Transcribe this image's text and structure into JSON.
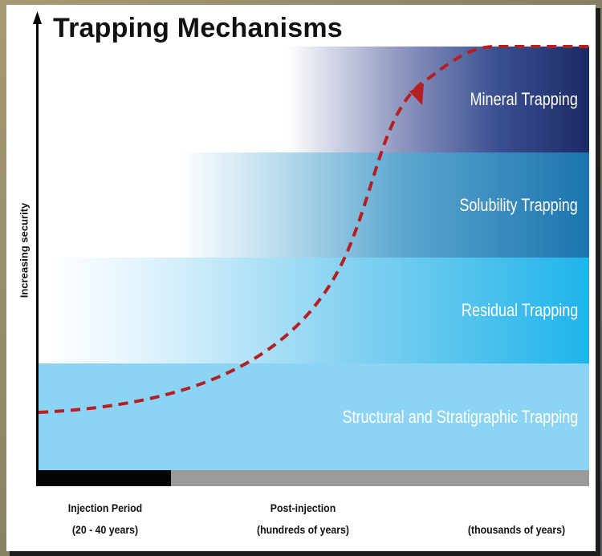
{
  "title": "Trapping Mechanisms",
  "y_axis_label": "Increasing security",
  "bands": [
    {
      "label": "Mineral Trapping"
    },
    {
      "label": "Solubility Trapping"
    },
    {
      "label": "Residual Trapping"
    },
    {
      "label": "Structural and Stratigraphic Trapping"
    }
  ],
  "timeline": {
    "periods": [
      {
        "line1": "Injection Period",
        "line2": "(20 - 40 years)"
      },
      {
        "line1": "Post-injection",
        "line2": "(hundreds of years)"
      },
      {
        "line1": "",
        "line2": "(thousands of years)"
      }
    ]
  },
  "colors": {
    "curve": "#b51f24",
    "structural": "#8bd4f4",
    "residual": "#1fb4ea",
    "solubility": "#1b74ae",
    "mineral": "#1b2a65",
    "injection_bar": "#050505",
    "post_injection_bar": "#9a9a9a"
  }
}
